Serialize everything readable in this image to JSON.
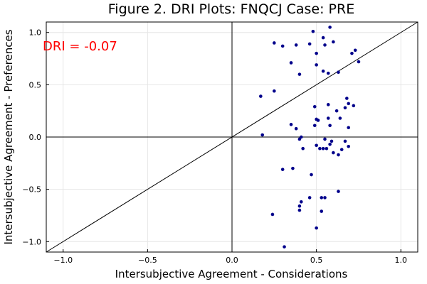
{
  "chart_data": {
    "type": "scatter",
    "title": "Figure 2. DRI Plots: FNQCJ Case: PRE",
    "xlabel": "Intersubjective Agreement - Considerations",
    "ylabel": "Intersubjective Agreement - Preferences",
    "xlim": [
      -1.1,
      1.1
    ],
    "ylim": [
      -1.1,
      1.1
    ],
    "xticks": [
      -1.0,
      -0.5,
      0.0,
      0.5,
      1.0
    ],
    "yticks": [
      -1.0,
      -0.5,
      0.0,
      0.5,
      1.0
    ],
    "xtick_labels": [
      "−1.0",
      "−0.5",
      "0.0",
      "0.5",
      "1.0"
    ],
    "ytick_labels": [
      "−1.0",
      "−0.5",
      "0.0",
      "0.5",
      "1.0"
    ],
    "grid": true,
    "reference_lines": [
      "x=0",
      "y=0",
      "y=x"
    ],
    "point_color": "#00008b",
    "annotation": {
      "text": "DRI = -0.07",
      "color": "#ff0000",
      "x": -1.1,
      "y": 0.87
    },
    "points": [
      [
        0.48,
        1.01
      ],
      [
        0.58,
        1.05
      ],
      [
        0.54,
        0.95
      ],
      [
        0.25,
        0.9
      ],
      [
        0.3,
        0.87
      ],
      [
        0.38,
        0.88
      ],
      [
        0.46,
        0.89
      ],
      [
        0.55,
        0.88
      ],
      [
        0.6,
        0.91
      ],
      [
        0.5,
        0.8
      ],
      [
        0.71,
        0.8
      ],
      [
        0.73,
        0.83
      ],
      [
        0.75,
        0.72
      ],
      [
        0.35,
        0.71
      ],
      [
        0.5,
        0.69
      ],
      [
        0.4,
        0.6
      ],
      [
        0.54,
        0.63
      ],
      [
        0.57,
        0.61
      ],
      [
        0.63,
        0.62
      ],
      [
        0.25,
        0.44
      ],
      [
        0.17,
        0.39
      ],
      [
        0.68,
        0.37
      ],
      [
        0.69,
        0.32
      ],
      [
        0.72,
        0.3
      ],
      [
        0.49,
        0.29
      ],
      [
        0.67,
        0.28
      ],
      [
        0.62,
        0.25
      ],
      [
        0.57,
        0.31
      ],
      [
        0.5,
        0.17
      ],
      [
        0.51,
        0.16
      ],
      [
        0.57,
        0.18
      ],
      [
        0.64,
        0.18
      ],
      [
        0.35,
        0.12
      ],
      [
        0.49,
        0.11
      ],
      [
        0.58,
        0.11
      ],
      [
        0.69,
        0.09
      ],
      [
        0.38,
        0.08
      ],
      [
        0.18,
        0.02
      ],
      [
        0.41,
        0.0
      ],
      [
        0.4,
        -0.02
      ],
      [
        0.55,
        -0.02
      ],
      [
        0.59,
        -0.04
      ],
      [
        0.67,
        -0.04
      ],
      [
        0.58,
        -0.07
      ],
      [
        0.5,
        -0.08
      ],
      [
        0.69,
        -0.09
      ],
      [
        0.52,
        -0.11
      ],
      [
        0.42,
        -0.11
      ],
      [
        0.54,
        -0.11
      ],
      [
        0.56,
        -0.11
      ],
      [
        0.65,
        -0.12
      ],
      [
        0.6,
        -0.15
      ],
      [
        0.63,
        -0.17
      ],
      [
        0.36,
        -0.3
      ],
      [
        0.3,
        -0.31
      ],
      [
        0.47,
        -0.36
      ],
      [
        0.63,
        -0.52
      ],
      [
        0.46,
        -0.58
      ],
      [
        0.53,
        -0.58
      ],
      [
        0.55,
        -0.58
      ],
      [
        0.41,
        -0.62
      ],
      [
        0.4,
        -0.66
      ],
      [
        0.4,
        -0.7
      ],
      [
        0.53,
        -0.71
      ],
      [
        0.24,
        -0.74
      ],
      [
        0.5,
        -0.87
      ],
      [
        0.31,
        -1.05
      ]
    ]
  }
}
